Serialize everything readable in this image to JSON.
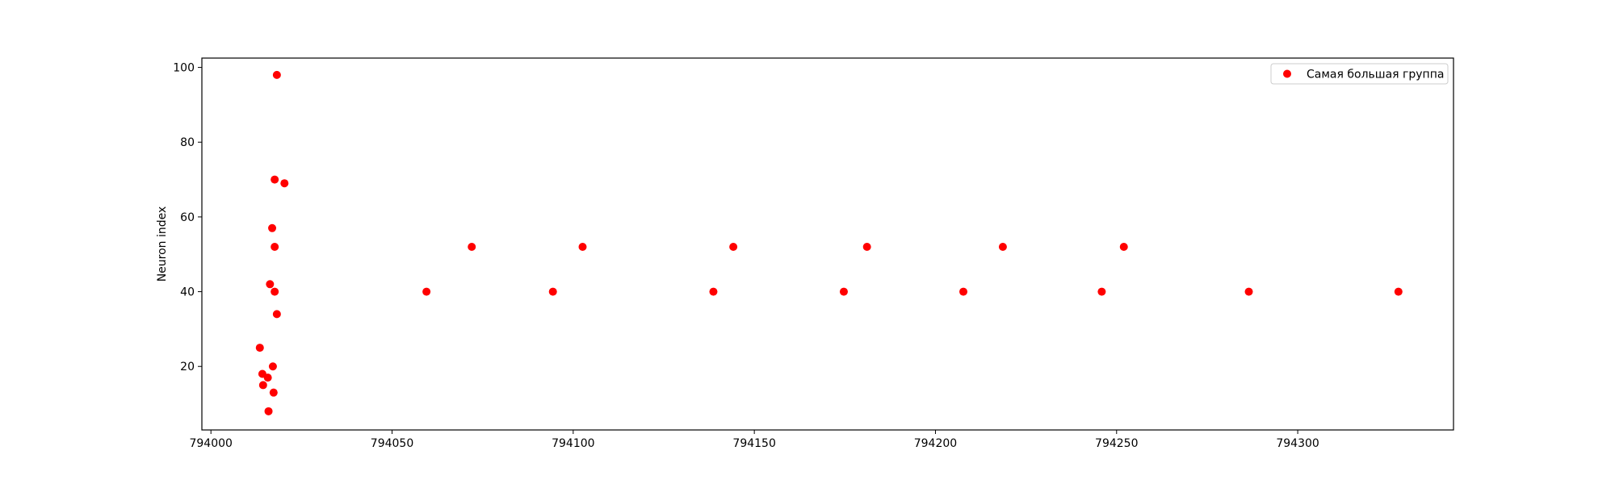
{
  "chart_data": {
    "type": "scatter",
    "title": "",
    "xlabel": "",
    "ylabel": "Neuron index",
    "xlim": [
      793997.5,
      794343
    ],
    "ylim": [
      3,
      102.5
    ],
    "xticks": [
      794000,
      794050,
      794100,
      794150,
      794200,
      794250,
      794300
    ],
    "xtick_labels": [
      "794000",
      "794050",
      "794100",
      "794150",
      "794200",
      "794250",
      "794300"
    ],
    "yticks": [
      20,
      40,
      60,
      80,
      100
    ],
    "ytick_labels": [
      "20",
      "40",
      "60",
      "80",
      "100"
    ],
    "grid": false,
    "legend": {
      "placement": "top-right"
    },
    "series": [
      {
        "name": "Самая большая группа",
        "color": "#ff0000",
        "points": [
          {
            "x": 794018.2,
            "y": 98
          },
          {
            "x": 794017.6,
            "y": 70
          },
          {
            "x": 794020.3,
            "y": 69
          },
          {
            "x": 794016.9,
            "y": 57
          },
          {
            "x": 794017.6,
            "y": 52
          },
          {
            "x": 794016.3,
            "y": 42
          },
          {
            "x": 794017.6,
            "y": 40
          },
          {
            "x": 794018.2,
            "y": 34
          },
          {
            "x": 794013.5,
            "y": 25
          },
          {
            "x": 794017.1,
            "y": 20
          },
          {
            "x": 794014.2,
            "y": 18
          },
          {
            "x": 794015.7,
            "y": 17
          },
          {
            "x": 794014.4,
            "y": 15
          },
          {
            "x": 794017.3,
            "y": 13
          },
          {
            "x": 794015.9,
            "y": 8
          },
          {
            "x": 794059.5,
            "y": 40
          },
          {
            "x": 794072.0,
            "y": 52
          },
          {
            "x": 794094.4,
            "y": 40
          },
          {
            "x": 794102.6,
            "y": 52
          },
          {
            "x": 794138.7,
            "y": 40
          },
          {
            "x": 794144.2,
            "y": 52
          },
          {
            "x": 794174.7,
            "y": 40
          },
          {
            "x": 794181.1,
            "y": 52
          },
          {
            "x": 794207.7,
            "y": 40
          },
          {
            "x": 794218.6,
            "y": 52
          },
          {
            "x": 794245.9,
            "y": 40
          },
          {
            "x": 794252.0,
            "y": 52
          },
          {
            "x": 794286.5,
            "y": 40
          },
          {
            "x": 794327.8,
            "y": 40
          }
        ]
      }
    ]
  }
}
